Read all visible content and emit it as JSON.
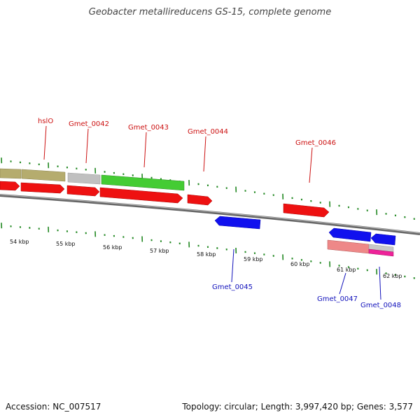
{
  "title": "Geobacter metallireducens GS-15, complete genome",
  "footer": {
    "accession": "Accession: NC_007517",
    "summary": "Topology: circular; Length: 3,997,420 bp; Genes: 3,577"
  },
  "ruler": [
    "54 kbp",
    "55 kbp",
    "56 kbp",
    "57 kbp",
    "58 kbp",
    "59 kbp",
    "60 kbp",
    "61 kbp",
    "62 kbp"
  ],
  "genes": {
    "hslO": "hslO",
    "g0042": "Gmet_0042",
    "g0043": "Gmet_0043",
    "g0044": "Gmet_0044",
    "g0045": "Gmet_0045",
    "g0046": "Gmet_0046",
    "g0047": "Gmet_0047",
    "g0048": "Gmet_0048"
  },
  "colors": {
    "cds": "#ee1111",
    "reverse": "#1111ee",
    "olive": "#b5ac6e",
    "grey": "#c0c0c0",
    "green": "#44cc33",
    "pink": "#ee8888",
    "magenta": "#ee2299",
    "tick": "#228822",
    "backbone": "#777777"
  }
}
